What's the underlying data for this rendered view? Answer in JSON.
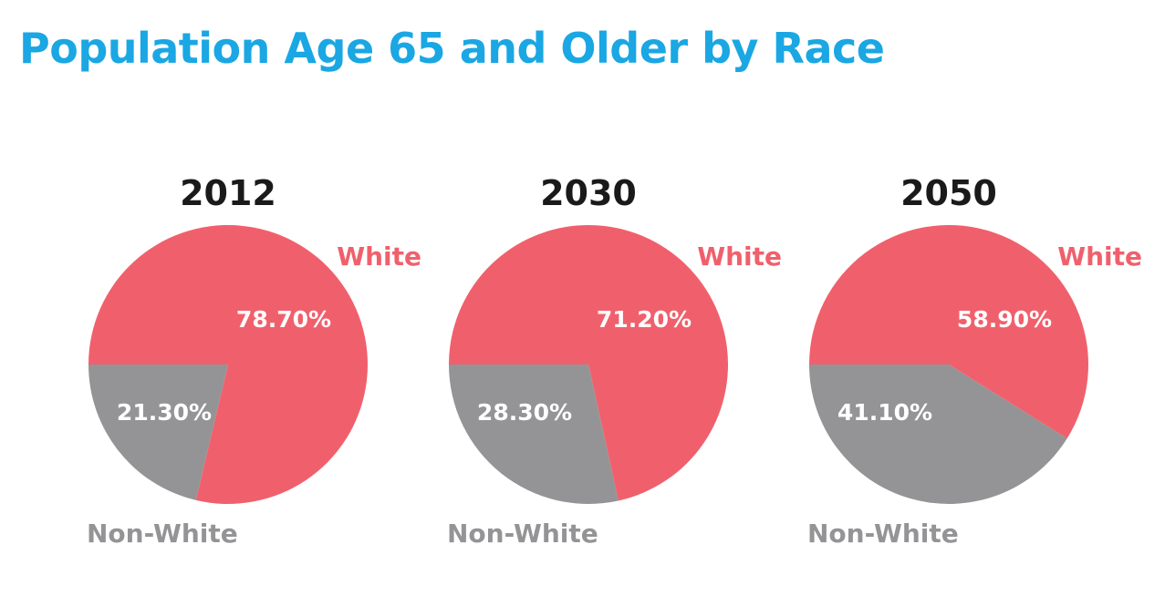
{
  "title": "Population Age 65 and Older by Race",
  "colors": {
    "title": "#1aa7e3",
    "white": "#f0606c",
    "non_white": "#949496",
    "year": "#1a1a1a",
    "slice_label": "#ffffff"
  },
  "chart_data": [
    {
      "type": "pie",
      "title": "2012",
      "slices": [
        {
          "label": "White",
          "value": 78.7,
          "value_label": "78.70%"
        },
        {
          "label": "Non-White",
          "value": 21.3,
          "value_label": "21.30%"
        }
      ]
    },
    {
      "type": "pie",
      "title": "2030",
      "slices": [
        {
          "label": "White",
          "value": 71.2,
          "value_label": "71.20%"
        },
        {
          "label": "Non-White",
          "value": 28.3,
          "value_label": "28.30%"
        }
      ]
    },
    {
      "type": "pie",
      "title": "2050",
      "slices": [
        {
          "label": "White",
          "value": 58.9,
          "value_label": "58.90%"
        },
        {
          "label": "Non-White",
          "value": 41.1,
          "value_label": "41.10%"
        }
      ]
    }
  ]
}
